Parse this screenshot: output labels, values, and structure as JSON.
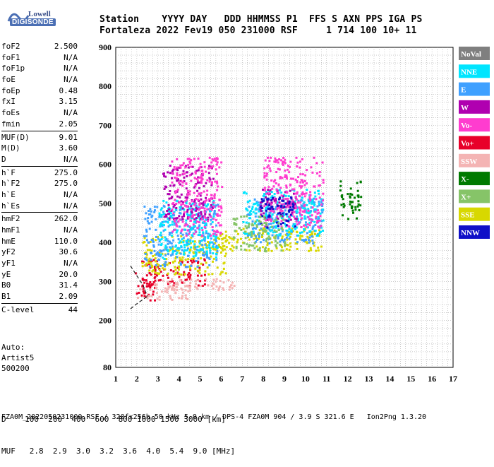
{
  "logo": {
    "top": "Lowell",
    "bottom": "DIGISONDE"
  },
  "header": {
    "labels": "Station    YYYY DAY   DDD HHMMSS P1  FFS S AXN PPS IGA PS",
    "values": "Fortaleza 2022 Fev19 050 231000 RSF     1 714 100 10+ 11"
  },
  "params": [
    [
      [
        "foF2",
        "2.500"
      ],
      [
        "foF1",
        "N/A"
      ],
      [
        "foF1p",
        "N/A"
      ],
      [
        "foE",
        "N/A"
      ],
      [
        "foEp",
        "0.48"
      ],
      [
        "fxI",
        "3.15"
      ],
      [
        "foEs",
        "N/A"
      ],
      [
        "fmin",
        "2.05"
      ]
    ],
    [
      [
        "MUF(D)",
        "9.01"
      ],
      [
        "M(D)",
        "3.60"
      ],
      [
        "D",
        "N/A"
      ]
    ],
    [
      [
        "h`F",
        "275.0"
      ],
      [
        "h`F2",
        "275.0"
      ],
      [
        "h`E",
        "N/A"
      ],
      [
        "h`Es",
        "N/A"
      ]
    ],
    [
      [
        "hmF2",
        "262.0"
      ],
      [
        "hmF1",
        "N/A"
      ],
      [
        "hmE",
        "110.0"
      ],
      [
        "yF2",
        "30.6"
      ],
      [
        "yF1",
        "N/A"
      ],
      [
        "yE",
        "20.0"
      ],
      [
        "B0",
        "31.4"
      ],
      [
        "B1",
        "2.09"
      ]
    ],
    [
      [
        "C-level",
        "44"
      ]
    ]
  ],
  "auto": {
    "line1": "Auto:",
    "line2": "Artist5",
    "line3": "500200"
  },
  "table": {
    "d_row": "D    100  200  400  600  800 1000 1500 3000 [km]",
    "muf_row": "MUF   2.8  2.9  3.0  3.2  3.6  4.0  5.4  9.0 [MHz]"
  },
  "footer": "FZA0M_2022050231000.RSF / 320fx256h 50 kHz 5.0 km / DPS-4 FZA0M 904 / 3.9 S 321.6 E   Ion2Png 1.3.20",
  "legend": [
    {
      "name": "NoVal",
      "color": "#7f7f7f"
    },
    {
      "name": "NNE",
      "color": "#00e5ff"
    },
    {
      "name": "E",
      "color": "#3fa0ff"
    },
    {
      "name": "W",
      "color": "#b000b0"
    },
    {
      "name": "Vo-",
      "color": "#ff3ccf"
    },
    {
      "name": "Vo+",
      "color": "#e8002a"
    },
    {
      "name": "SSW",
      "color": "#f4b4b4"
    },
    {
      "name": "X-",
      "color": "#007a00"
    },
    {
      "name": "X+",
      "color": "#86c468"
    },
    {
      "name": "SSE",
      "color": "#d8d800"
    },
    {
      "name": "NNW",
      "color": "#1010c8"
    }
  ],
  "chart_data": {
    "type": "scatter",
    "xlabel": "",
    "ylabel": "",
    "xlim": [
      1,
      17
    ],
    "ylim": [
      80,
      900
    ],
    "x_ticks": [
      "1",
      "2",
      "3",
      "4",
      "5",
      "6",
      "7",
      "8",
      "9",
      "10",
      "11",
      "12",
      "13",
      "14",
      "15",
      "16",
      "17"
    ],
    "y_ticks": [
      "80",
      "200",
      "300",
      "400",
      "500",
      "600",
      "700",
      "800",
      "900"
    ],
    "grid": true,
    "legend_position": "right",
    "series": [
      {
        "name": "Vo+",
        "clusters": [
          [
            1.9,
            2.9,
            250,
            330
          ],
          [
            2.2,
            5.2,
            290,
            360
          ]
        ]
      },
      {
        "name": "SSW",
        "clusters": [
          [
            2.0,
            4.6,
            255,
            300
          ],
          [
            3.2,
            6.5,
            280,
            310
          ],
          [
            5.8,
            6.7,
            290,
            300
          ]
        ]
      },
      {
        "name": "SSE",
        "clusters": [
          [
            2.2,
            6.2,
            320,
            420
          ],
          [
            6.0,
            10.8,
            380,
            440
          ]
        ]
      },
      {
        "name": "E",
        "clusters": [
          [
            2.3,
            5.8,
            340,
            500
          ],
          [
            7.2,
            10.8,
            400,
            520
          ]
        ]
      },
      {
        "name": "NNE",
        "clusters": [
          [
            3.0,
            5.8,
            360,
            510
          ],
          [
            7.0,
            10.8,
            420,
            540
          ]
        ]
      },
      {
        "name": "W",
        "clusters": [
          [
            3.2,
            5.6,
            460,
            600
          ],
          [
            7.8,
            9.6,
            460,
            540
          ]
        ]
      },
      {
        "name": "Vo-",
        "clusters": [
          [
            3.6,
            6.0,
            420,
            620
          ],
          [
            8.0,
            10.8,
            440,
            620
          ]
        ]
      },
      {
        "name": "NNW",
        "clusters": [
          [
            7.8,
            9.5,
            440,
            520
          ]
        ]
      },
      {
        "name": "X-",
        "clusters": [
          [
            11.6,
            12.6,
            460,
            560
          ]
        ]
      },
      {
        "name": "X+",
        "clusters": [
          [
            6.5,
            9.0,
            380,
            470
          ]
        ]
      }
    ],
    "h_profile": [
      [
        1.7,
        340
      ],
      [
        2.0,
        315
      ],
      [
        2.3,
        290
      ],
      [
        2.5,
        262
      ]
    ],
    "lower_line": [
      [
        1.7,
        230
      ],
      [
        2.0,
        243
      ],
      [
        2.5,
        262
      ]
    ]
  }
}
